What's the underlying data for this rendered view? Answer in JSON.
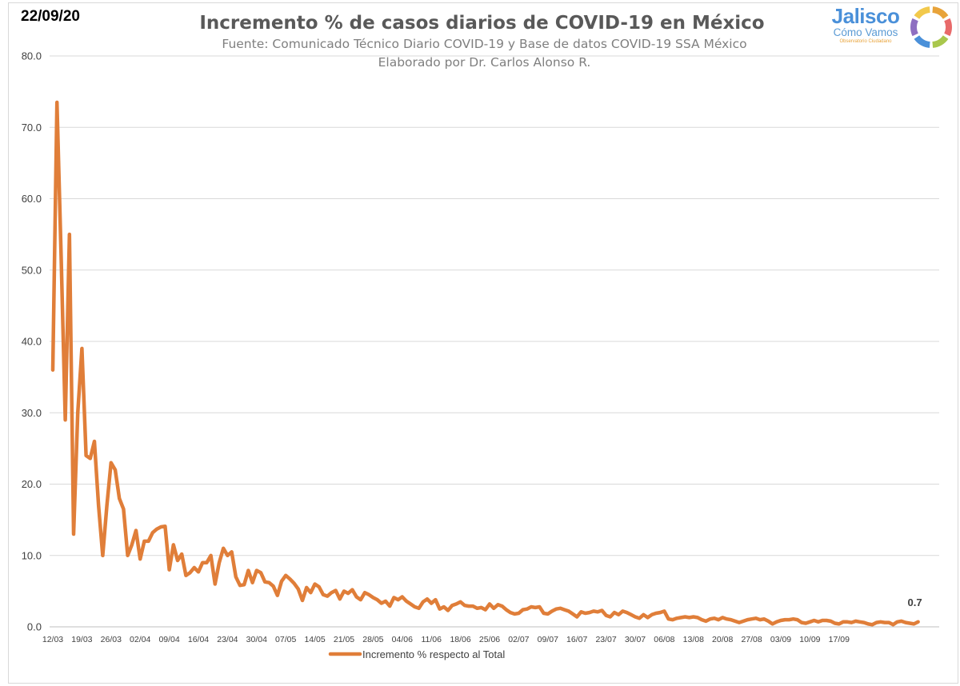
{
  "header": {
    "date": "22/09/20",
    "title": "Incremento % de casos diarios de COVID-19 en México",
    "subtitle_line1": "Fuente: Comunicado Técnico Diario COVID-19 y Base de datos COVID-19 SSA México",
    "subtitle_line2": "Elaborado por Dr. Carlos Alonso R."
  },
  "logo": {
    "name": "Jalisco",
    "subname": "Cómo Vamos",
    "tagline": "Observatorio Ciudadano",
    "colors": [
      "#e8a33a",
      "#e86a6a",
      "#a9c74d",
      "#4a90d9",
      "#8e6fc1",
      "#f2c94c"
    ]
  },
  "chart_data": {
    "type": "line",
    "title": "Incremento % de casos diarios de COVID-19 en México",
    "xlabel": "",
    "ylabel": "",
    "ylim": [
      0,
      80
    ],
    "yticks": [
      "0.0",
      "10.0",
      "20.0",
      "30.0",
      "40.0",
      "50.0",
      "60.0",
      "70.0",
      "80.0"
    ],
    "xticks": [
      "12/03",
      "19/03",
      "26/03",
      "02/04",
      "09/04",
      "16/04",
      "23/04",
      "30/04",
      "07/05",
      "14/05",
      "21/05",
      "28/05",
      "04/06",
      "11/06",
      "18/06",
      "25/06",
      "02/07",
      "09/07",
      "16/07",
      "23/07",
      "30/07",
      "06/08",
      "13/08",
      "20/08",
      "27/08",
      "03/09",
      "10/09",
      "17/09"
    ],
    "grid": true,
    "legend_position": "bottom",
    "line_color": "#e07e39",
    "series": [
      {
        "name": "Incremento % respecto al Total",
        "start_date": "12/03",
        "values": [
          36.0,
          73.5,
          52.0,
          29.0,
          55.0,
          13.0,
          30.0,
          39.0,
          24.0,
          23.6,
          26.0,
          17.0,
          10.0,
          17.0,
          23.0,
          22.0,
          18.0,
          16.5,
          10.0,
          11.5,
          13.5,
          9.5,
          12.0,
          12.0,
          13.2,
          13.7,
          14.0,
          14.1,
          8.0,
          11.5,
          9.3,
          10.2,
          7.2,
          7.6,
          8.3,
          7.7,
          9.0,
          9.0,
          10.0,
          6.0,
          9.0,
          11.0,
          10.0,
          10.5,
          7.0,
          5.8,
          5.9,
          7.9,
          6.2,
          7.9,
          7.6,
          6.3,
          6.2,
          5.7,
          4.4,
          6.4,
          7.2,
          6.7,
          6.1,
          5.3,
          3.7,
          5.5,
          4.8,
          6.0,
          5.6,
          4.5,
          4.3,
          4.8,
          5.1,
          3.9,
          5.0,
          4.7,
          5.2,
          4.2,
          3.8,
          4.8,
          4.5,
          4.1,
          3.8,
          3.3,
          3.6,
          2.9,
          4.1,
          3.8,
          4.2,
          3.6,
          3.2,
          2.8,
          2.6,
          3.5,
          3.9,
          3.3,
          3.8,
          2.5,
          2.8,
          2.3,
          3.0,
          3.2,
          3.5,
          3.0,
          2.9,
          2.9,
          2.6,
          2.7,
          2.4,
          3.2,
          2.6,
          3.1,
          2.9,
          2.4,
          2.0,
          1.8,
          1.9,
          2.4,
          2.5,
          2.8,
          2.7,
          2.8,
          1.9,
          1.8,
          2.2,
          2.5,
          2.6,
          2.4,
          2.2,
          1.8,
          1.4,
          2.1,
          1.9,
          2.0,
          2.2,
          2.1,
          2.3,
          1.6,
          1.4,
          2.0,
          1.7,
          2.2,
          2.0,
          1.7,
          1.4,
          1.2,
          1.7,
          1.3,
          1.7,
          1.9,
          2.0,
          2.2,
          1.1,
          1.0,
          1.2,
          1.3,
          1.4,
          1.3,
          1.4,
          1.3,
          1.0,
          0.8,
          1.1,
          1.2,
          1.0,
          1.3,
          1.1,
          1.0,
          0.8,
          0.6,
          0.8,
          1.0,
          1.1,
          1.2,
          1.0,
          1.1,
          0.8,
          0.4,
          0.7,
          0.9,
          1.0,
          1.0,
          1.1,
          1.0,
          0.6,
          0.5,
          0.7,
          0.9,
          0.7,
          0.9,
          0.9,
          0.8,
          0.5,
          0.4,
          0.7,
          0.7,
          0.6,
          0.8,
          0.7,
          0.6,
          0.4,
          0.3,
          0.6,
          0.7,
          0.6,
          0.6,
          0.3,
          0.7,
          0.8,
          0.6,
          0.5,
          0.4,
          0.7
        ]
      }
    ],
    "annotations": [
      {
        "label": "0.7"
      }
    ]
  }
}
